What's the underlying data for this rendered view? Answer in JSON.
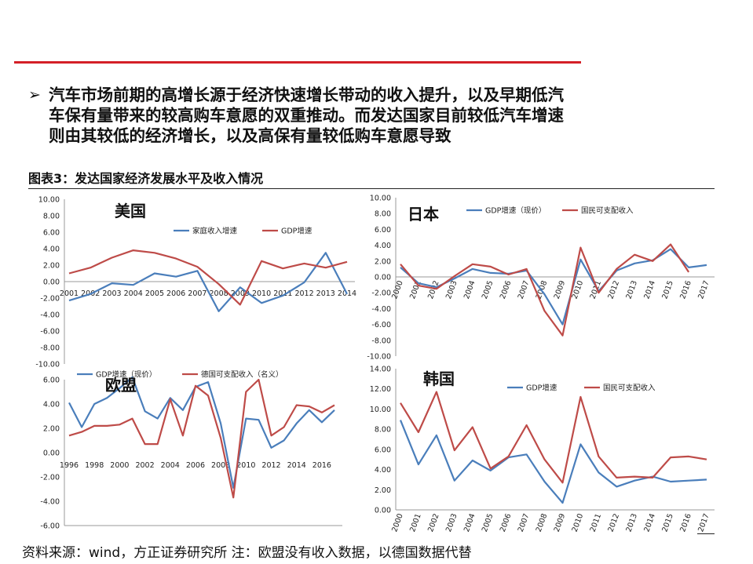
{
  "bullet": {
    "marker": "➢",
    "lines": [
      "汽车市场前期的高增长源于经济快速增长带动的收入提升，以及早期低汽",
      "车保有量带来的较高购车意愿的双重推动。而发达国家目前较低汽车增速",
      "则由其较低的经济增长，以及高保有量较低购车意愿导致"
    ]
  },
  "figure_title": "图表3：发达国家经济发展水平及收入情况",
  "source_note": "资料来源：wind，方正证券研究所  注：欧盟没有收入数据，以德国数据代替",
  "colors": {
    "blue": "#4a7ebb",
    "red": "#be4b48",
    "accent_line": "#d42027"
  },
  "chart_data": [
    {
      "id": "us",
      "type": "line",
      "title": "美国",
      "x": [
        "2001",
        "2002",
        "2003",
        "2004",
        "2005",
        "2006",
        "2007",
        "2008",
        "2009",
        "2010",
        "2011",
        "2012",
        "2013",
        "2014"
      ],
      "ylim": [
        -10,
        10
      ],
      "yticks": [
        "-10.00",
        "-8.00",
        "-6.00",
        "-4.00",
        "-2.00",
        "0.00",
        "2.00",
        "4.00",
        "6.00",
        "8.00",
        "10.00"
      ],
      "series": [
        {
          "name": "家庭收入增速",
          "color": "#4a7ebb",
          "values": [
            -2.3,
            -1.5,
            -0.2,
            -0.4,
            1.0,
            0.6,
            1.3,
            -3.6,
            -0.7,
            -2.6,
            -1.7,
            -0.1,
            3.5,
            -1.5
          ]
        },
        {
          "name": "GDP增速",
          "color": "#be4b48",
          "values": [
            1.0,
            1.7,
            2.9,
            3.8,
            3.5,
            2.8,
            1.8,
            -0.3,
            -2.8,
            2.5,
            1.6,
            2.2,
            1.7,
            2.4
          ]
        }
      ]
    },
    {
      "id": "jp",
      "type": "line",
      "title": "日本",
      "x": [
        "2000",
        "2001",
        "2002",
        "2003",
        "2004",
        "2005",
        "2006",
        "2007",
        "2008",
        "2009",
        "2010",
        "2011",
        "2012",
        "2013",
        "2014",
        "2015",
        "2016",
        "2017"
      ],
      "ylim": [
        -10,
        10
      ],
      "yticks": [
        "-10.00",
        "-8.00",
        "-6.00",
        "-4.00",
        "-2.00",
        "0.00",
        "2.00",
        "4.00",
        "6.00",
        "8.00",
        "10.00"
      ],
      "series": [
        {
          "name": "GDP增速（现价）",
          "color": "#4a7ebb",
          "values": [
            1.2,
            -0.8,
            -1.3,
            -0.2,
            1.0,
            0.5,
            0.4,
            0.8,
            -2.2,
            -6.0,
            2.2,
            -1.8,
            0.8,
            1.7,
            2.1,
            3.5,
            1.2,
            1.5
          ]
        },
        {
          "name": "国民可支配收入",
          "color": "#be4b48",
          "values": [
            1.6,
            -1.1,
            -1.5,
            0.1,
            1.6,
            1.3,
            0.3,
            1.0,
            -4.3,
            -7.4,
            3.7,
            -2.0,
            1.0,
            2.8,
            2.0,
            4.1,
            0.6,
            null
          ]
        }
      ]
    },
    {
      "id": "eu",
      "type": "line",
      "title": "欧盟",
      "x": [
        "1996",
        "1997",
        "1998",
        "1999",
        "2000",
        "2001",
        "2002",
        "2003",
        "2004",
        "2005",
        "2006",
        "2007",
        "2008",
        "2009",
        "2010",
        "2011",
        "2012",
        "2013",
        "2014",
        "2015",
        "2016",
        "2017"
      ],
      "xlabels": [
        "1996",
        "1998",
        "2000",
        "2002",
        "2004",
        "2006",
        "2008",
        "2010",
        "2012",
        "2014",
        "2016"
      ],
      "ylim": [
        -6,
        6
      ],
      "yticks": [
        "-6.00",
        "-4.00",
        "-2.00",
        "0.00",
        "2.00",
        "4.00",
        "6.00"
      ],
      "series": [
        {
          "name": "GDP增速（现价）",
          "color": "#4a7ebb",
          "values": [
            4.1,
            2.1,
            4.0,
            4.5,
            5.3,
            6.2,
            3.4,
            2.8,
            4.5,
            3.5,
            5.4,
            5.8,
            2.4,
            -2.9,
            2.8,
            2.7,
            0.4,
            1.0,
            2.4,
            3.5,
            2.5,
            3.5
          ]
        },
        {
          "name": "德国可支配收入（名义）",
          "color": "#be4b48",
          "values": [
            1.4,
            1.7,
            2.2,
            2.2,
            2.3,
            2.8,
            0.7,
            0.7,
            4.4,
            1.4,
            5.5,
            4.7,
            1.2,
            -3.7,
            5.0,
            6.0,
            1.4,
            2.1,
            3.9,
            3.8,
            3.3,
            3.9
          ]
        }
      ]
    },
    {
      "id": "kr",
      "type": "line",
      "title": "韩国",
      "x": [
        "2000",
        "2001",
        "2002",
        "2003",
        "2004",
        "2005",
        "2006",
        "2007",
        "2008",
        "2009",
        "2010",
        "2011",
        "2012",
        "2013",
        "2014",
        "2015",
        "2016",
        "2017"
      ],
      "ylim": [
        0,
        14
      ],
      "yticks": [
        "0.00",
        "2.00",
        "4.00",
        "6.00",
        "8.00",
        "10.00",
        "12.00",
        "14.00"
      ],
      "series": [
        {
          "name": "GDP增速",
          "color": "#4a7ebb",
          "values": [
            8.9,
            4.5,
            7.4,
            2.9,
            4.9,
            3.9,
            5.2,
            5.5,
            2.8,
            0.7,
            6.5,
            3.7,
            2.3,
            2.9,
            3.3,
            2.8,
            2.9,
            3.0
          ]
        },
        {
          "name": "国民可支配收入",
          "color": "#be4b48",
          "values": [
            10.6,
            7.7,
            11.7,
            5.9,
            8.2,
            4.1,
            5.3,
            8.4,
            5.0,
            2.7,
            11.2,
            5.3,
            3.2,
            3.3,
            3.2,
            5.2,
            5.3,
            5.0
          ]
        }
      ]
    }
  ]
}
